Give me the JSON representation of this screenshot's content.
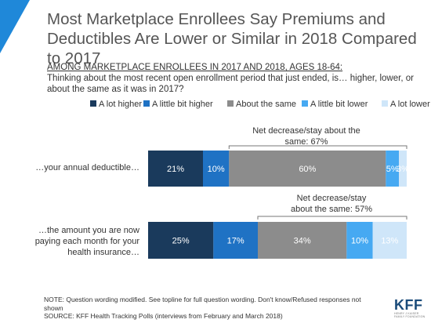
{
  "title": "Most Marketplace Enrollees Say Premiums and Deductibles Are Lower or Similar in 2018 Compared to 2017",
  "subtitle_underlined": "AMONG MARKETPLACE ENROLLEES IN 2017 AND 2018, AGES 18-64:",
  "subtitle_question": "Thinking about the most recent open enrollment period that just ended, is… higher, lower, or about the same as it was in 2017?",
  "note": "NOTE: Question wording modified. See topline for full question wording. Don't know/Refused responses not shown",
  "source": "SOURCE: KFF Health Tracking Polls (interviews from February and March 2018)",
  "logo": {
    "main": "KFF",
    "sub": "HENRY J KAISER FAMILY FOUNDATION"
  },
  "colors": {
    "a_lot_higher": "#1a3a5c",
    "a_little_bit_higher": "#1f72c4",
    "about_the_same": "#8c8c8c",
    "a_little_bit_lower": "#46a9f2",
    "a_lot_lower": "#cfe6f9",
    "accent": "#1f88d9"
  },
  "chart_data": {
    "type": "bar",
    "orientation": "horizontal",
    "stacked": true,
    "unit": "%",
    "legend_position": "top",
    "categories": [
      "…your annual deductible…",
      "…the amount you are now paying each month for your health insurance…"
    ],
    "series": [
      {
        "name": "A lot higher",
        "values": [
          21,
          25
        ],
        "labels": [
          "21%",
          "25%"
        ]
      },
      {
        "name": "A little bit higher",
        "values": [
          10,
          17
        ],
        "labels": [
          "10%",
          "17%"
        ]
      },
      {
        "name": "About the same",
        "values": [
          60,
          34
        ],
        "labels": [
          "60%",
          "34%"
        ]
      },
      {
        "name": "A little bit lower",
        "values": [
          5,
          10
        ],
        "labels": [
          "5%",
          "10%"
        ]
      },
      {
        "name": "A lot lower",
        "values": [
          3,
          13
        ],
        "labels": [
          "3%",
          "13%"
        ]
      }
    ],
    "annotations": [
      {
        "row": 0,
        "text": "Net decrease/stay about the same: 67%"
      },
      {
        "row": 1,
        "text": "Net decrease/stay about the same: 57%"
      }
    ]
  }
}
